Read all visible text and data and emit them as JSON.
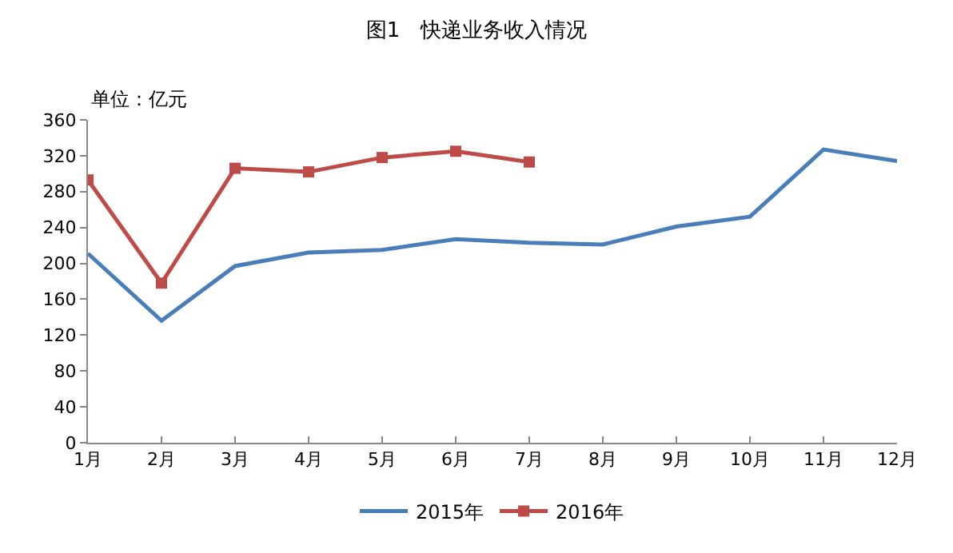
{
  "chart_data": {
    "type": "line",
    "title": "图1　快递业务收入情况",
    "annotations": [
      "单位：亿元"
    ],
    "categories": [
      "1月",
      "2月",
      "3月",
      "4月",
      "5月",
      "6月",
      "7月",
      "8月",
      "9月",
      "10月",
      "11月",
      "12月"
    ],
    "series": [
      {
        "name": "2015年",
        "color": "#4a7ebb",
        "marker": "none",
        "values": [
          211,
          136,
          197,
          212,
          215,
          227,
          223,
          221,
          241,
          252,
          327,
          314
        ]
      },
      {
        "name": "2016年",
        "color": "#be4b48",
        "marker": "square",
        "values": [
          293,
          178,
          306,
          302,
          318,
          325,
          313,
          null,
          null,
          null,
          null,
          null
        ]
      }
    ],
    "ylim": [
      0,
      360
    ],
    "yticks": [
      0,
      40,
      80,
      120,
      160,
      200,
      240,
      280,
      320,
      360
    ],
    "legend": "bottom",
    "line_style": "solid"
  }
}
